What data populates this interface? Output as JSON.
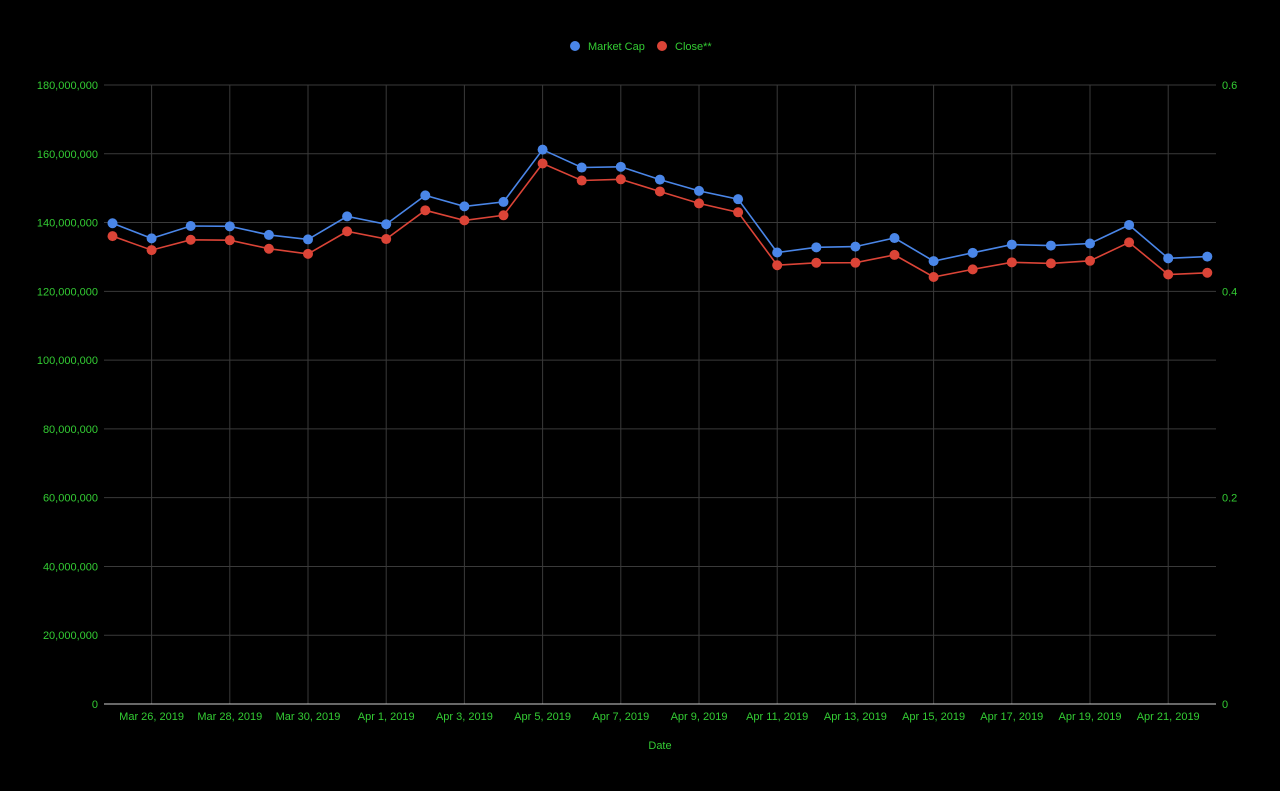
{
  "colors": {
    "background": "#000000",
    "grid": "#3a3a3a",
    "baseline": "#d0d0d0",
    "text": "#33cc33",
    "market_cap": "#4a86e8",
    "close": "#db4437"
  },
  "chart_data": {
    "type": "line",
    "xlabel": "Date",
    "x": [
      "2019-03-25",
      "2019-03-26",
      "2019-03-27",
      "2019-03-28",
      "2019-03-29",
      "2019-03-30",
      "2019-03-31",
      "2019-04-01",
      "2019-04-02",
      "2019-04-03",
      "2019-04-04",
      "2019-04-05",
      "2019-04-06",
      "2019-04-07",
      "2019-04-08",
      "2019-04-09",
      "2019-04-10",
      "2019-04-11",
      "2019-04-12",
      "2019-04-13",
      "2019-04-14",
      "2019-04-15",
      "2019-04-16",
      "2019-04-17",
      "2019-04-18",
      "2019-04-19",
      "2019-04-20",
      "2019-04-21",
      "2019-04-22"
    ],
    "x_tick_labels": [
      "Mar 26, 2019",
      "Mar 28, 2019",
      "Mar 30, 2019",
      "Apr 1, 2019",
      "Apr 3, 2019",
      "Apr 5, 2019",
      "Apr 7, 2019",
      "Apr 9, 2019",
      "Apr 11, 2019",
      "Apr 13, 2019",
      "Apr 15, 2019",
      "Apr 17, 2019",
      "Apr 19, 2019",
      "Apr 21, 2019"
    ],
    "y_left": {
      "ylim": [
        0,
        180000000
      ],
      "tick_labels": [
        "0",
        "20,000,000",
        "40,000,000",
        "60,000,000",
        "80,000,000",
        "100,000,000",
        "120,000,000",
        "140,000,000",
        "160,000,000",
        "180,000,000"
      ]
    },
    "y_right": {
      "ylim": [
        0,
        0.6
      ],
      "tick_labels": [
        "0",
        "0.2",
        "0.4",
        "0.6"
      ]
    },
    "grid": true,
    "legend_position": "top-center",
    "series": [
      {
        "name": "Market Cap",
        "axis": "left",
        "values": [
          139800000,
          135400000,
          139000000,
          138900000,
          136400000,
          135100000,
          141800000,
          139500000,
          147900000,
          144700000,
          146000000,
          161200000,
          156000000,
          156200000,
          152500000,
          149200000,
          146800000,
          131300000,
          132800000,
          133000000,
          135500000,
          128800000,
          131200000,
          133600000,
          133300000,
          133900000,
          139300000,
          129600000,
          130100000
        ]
      },
      {
        "name": "Close**",
        "axis": "right",
        "values": [
          0.4535,
          0.44,
          0.45,
          0.4496,
          0.4413,
          0.4363,
          0.4581,
          0.4507,
          0.4785,
          0.4688,
          0.4737,
          0.5239,
          0.5074,
          0.5086,
          0.4968,
          0.4852,
          0.4766,
          0.4253,
          0.4277,
          0.4278,
          0.4353,
          0.4139,
          0.4213,
          0.4281,
          0.4271,
          0.4296,
          0.4474,
          0.4163,
          0.418
        ]
      }
    ]
  }
}
